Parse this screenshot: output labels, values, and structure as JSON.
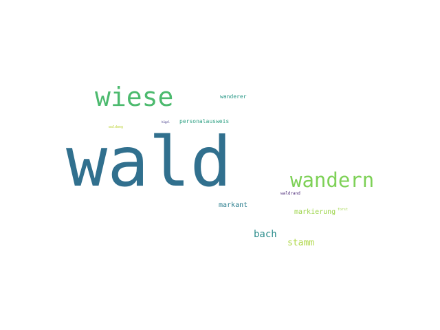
{
  "words": [
    {
      "text": "wald",
      "color": "#31708e"
    },
    {
      "text": "wiese",
      "color": "#4cba6e"
    },
    {
      "text": "wandern",
      "color": "#7ed157"
    },
    {
      "text": "bach",
      "color": "#2a8c8b"
    },
    {
      "text": "stamm",
      "color": "#b0d84a"
    },
    {
      "text": "markierung",
      "color": "#9ed54c"
    },
    {
      "text": "markant",
      "color": "#2b7e8e"
    },
    {
      "text": "personalausweis",
      "color": "#2fa184"
    },
    {
      "text": "wanderer",
      "color": "#2c9a89"
    },
    {
      "text": "waldweg",
      "color": "#bfd43e"
    },
    {
      "text": "waldrand",
      "color": "#4b2a78"
    },
    {
      "text": "forst",
      "color": "#a3d64a"
    },
    {
      "text": "hügel",
      "color": "#3b3184"
    }
  ]
}
